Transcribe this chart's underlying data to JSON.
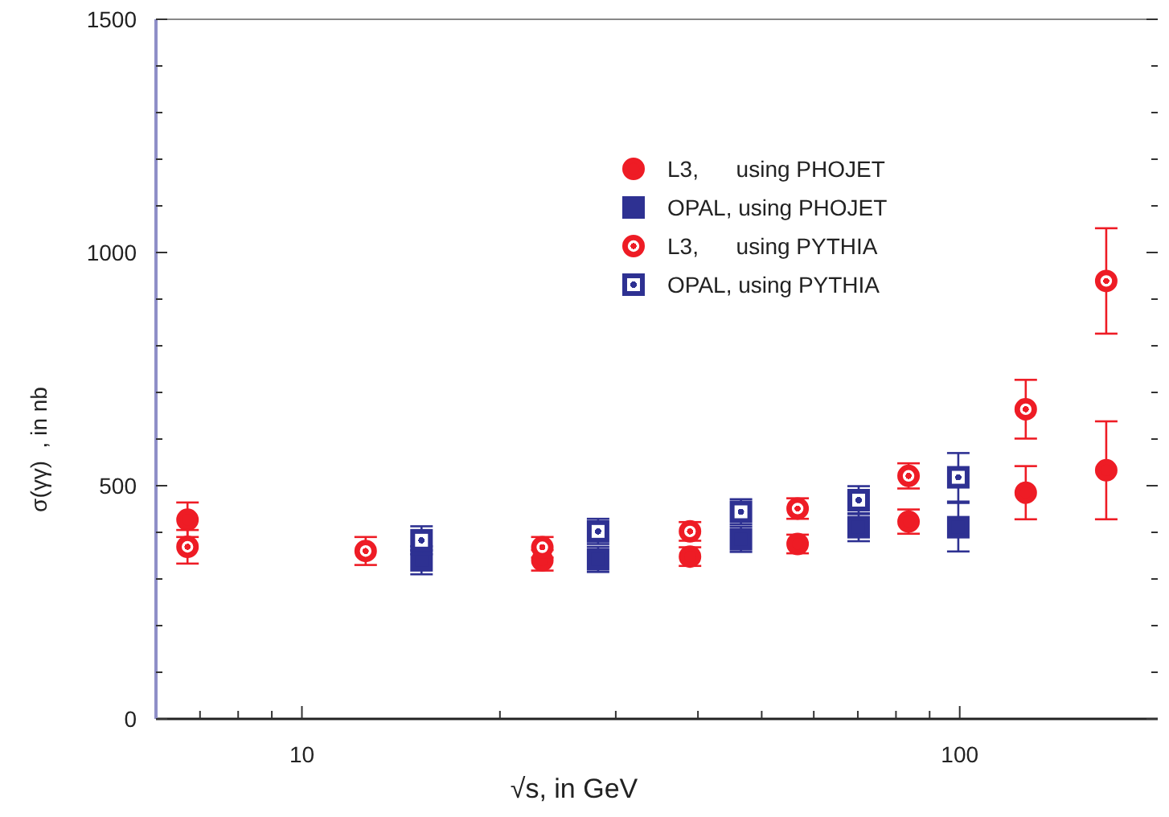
{
  "chart_data": {
    "type": "scatter",
    "xlabel": "√s, in GeV",
    "ylabel": "σ(γγ)  , in nb",
    "log": "x",
    "xlim": [
      6,
      200
    ],
    "ylim": [
      0,
      1500
    ],
    "xticks": [
      {
        "value": 7,
        "label": null
      },
      {
        "value": 8,
        "label": null
      },
      {
        "value": 9,
        "label": null
      },
      10,
      {
        "value": 20,
        "label": null
      },
      {
        "value": 30,
        "label": null
      },
      {
        "value": 40,
        "label": null
      },
      {
        "value": 50,
        "label": null
      },
      {
        "value": 60,
        "label": null
      },
      {
        "value": 70,
        "label": null
      },
      {
        "value": 80,
        "label": null
      },
      {
        "value": 90,
        "label": null
      },
      100
    ],
    "yticks": [
      0,
      {
        "value": 100,
        "label": null
      },
      {
        "value": 200,
        "label": null
      },
      {
        "value": 300,
        "label": null
      },
      {
        "value": 400,
        "label": null
      },
      500,
      {
        "value": 600,
        "label": null
      },
      {
        "value": 700,
        "label": null
      },
      {
        "value": 800,
        "label": null
      },
      {
        "value": 900,
        "label": null
      },
      1000,
      {
        "value": 1100,
        "label": null
      },
      {
        "value": 1200,
        "label": null
      },
      {
        "value": 1300,
        "label": null
      },
      {
        "value": 1400,
        "label": null
      },
      1500
    ],
    "grid": false,
    "legend": "top right",
    "series": [
      {
        "name": "L3,      using PHOJET",
        "color": "#ee1c25",
        "marker": "circle",
        "x": [
          6.7,
          12.5,
          23.2,
          38.9,
          56.7,
          83.6,
          126,
          167
        ],
        "values": [
          427,
          null,
          340,
          348,
          375,
          423,
          485,
          533
        ],
        "errors": [
          37,
          null,
          22,
          20,
          20,
          26,
          57,
          105
        ]
      },
      {
        "name": "OPAL, using PHOJET",
        "color": "#2e3192",
        "marker": "square",
        "x": [
          15.2,
          28.2,
          46.5,
          70.2,
          99.5
        ],
        "values": [
          340,
          342,
          385,
          411,
          411
        ],
        "errors": [
          30,
          27,
          27,
          30,
          52
        ]
      },
      {
        "name": "L3,      using PYTHIA",
        "color": "#ee1c25",
        "marker": "circle",
        "x": [
          6.7,
          12.5,
          23.2,
          38.9,
          56.7,
          83.6,
          126,
          167
        ],
        "values": [
          369,
          360,
          368,
          402,
          451,
          521,
          664,
          939
        ],
        "errors": [
          36,
          30,
          22,
          20,
          22,
          27,
          63,
          113
        ]
      },
      {
        "name": "OPAL, using PYTHIA",
        "color": "#2e3192",
        "marker": "square",
        "x": [
          15.2,
          28.2,
          46.5,
          70.2,
          99.5
        ],
        "values": [
          383,
          402,
          444,
          469,
          518
        ],
        "errors": [
          30,
          27,
          27,
          30,
          52
        ]
      }
    ]
  }
}
